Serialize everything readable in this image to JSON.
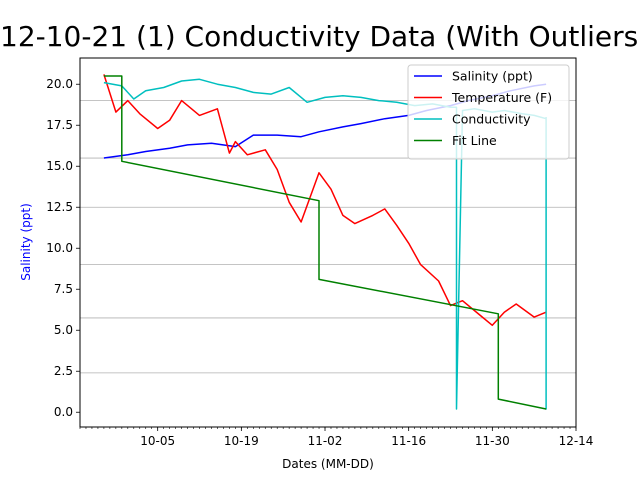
{
  "chart_data": {
    "type": "line",
    "title": "12-10-21 (1) Conductivity Data (With Outliers)",
    "xlabel": "Dates (MM-DD)",
    "ylabel": "Salinity (ppt)",
    "ylabel_color": "#0000ff",
    "x_axis": {
      "type": "date",
      "year": 2021,
      "xlim": [
        "2021-09-22",
        "2021-12-14"
      ],
      "ticks": [
        "2021-10-05",
        "2021-10-19",
        "2021-11-02",
        "2021-11-16",
        "2021-11-30",
        "2021-12-14"
      ],
      "tick_labels": [
        "10-05",
        "10-19",
        "11-02",
        "11-16",
        "11-30",
        "12-14"
      ]
    },
    "ylim": [
      -0.9,
      21.6
    ],
    "y_ticks": [
      0.0,
      2.5,
      5.0,
      7.5,
      10.0,
      12.5,
      15.0,
      17.5,
      20.0
    ],
    "y_tick_labels": [
      "0.0",
      "2.5",
      "5.0",
      "7.5",
      "10.0",
      "12.5",
      "15.0",
      "17.5",
      "20.0"
    ],
    "grid_lines_y": [
      19.0,
      15.5,
      12.5,
      9.0,
      5.75,
      2.4
    ],
    "legend": {
      "position": "top-right"
    },
    "series": [
      {
        "name": "Salinity (ppt)",
        "color": "#0000ff",
        "x": [
          "2021-09-26",
          "2021-09-30",
          "2021-10-03",
          "2021-10-07",
          "2021-10-10",
          "2021-10-14",
          "2021-10-18",
          "2021-10-21",
          "2021-10-25",
          "2021-10-29",
          "2021-11-01",
          "2021-11-05",
          "2021-11-08",
          "2021-11-12",
          "2021-11-16",
          "2021-11-19",
          "2021-11-23",
          "2021-11-26",
          "2021-11-30",
          "2021-12-03",
          "2021-12-07",
          "2021-12-09"
        ],
        "y": [
          15.5,
          15.7,
          15.9,
          16.1,
          16.3,
          16.4,
          16.2,
          16.9,
          16.9,
          16.8,
          17.1,
          17.4,
          17.6,
          17.9,
          18.1,
          18.4,
          18.7,
          19.0,
          19.3,
          19.6,
          19.9,
          20.0
        ]
      },
      {
        "name": "Temperature (F)",
        "color": "#ff0000",
        "x": [
          "2021-09-26",
          "2021-09-28",
          "2021-09-30",
          "2021-10-02",
          "2021-10-05",
          "2021-10-07",
          "2021-10-09",
          "2021-10-12",
          "2021-10-15",
          "2021-10-17",
          "2021-10-18",
          "2021-10-20",
          "2021-10-23",
          "2021-10-25",
          "2021-10-27",
          "2021-10-29",
          "2021-11-01",
          "2021-11-03",
          "2021-11-05",
          "2021-11-07",
          "2021-11-10",
          "2021-11-12",
          "2021-11-14",
          "2021-11-16",
          "2021-11-18",
          "2021-11-21",
          "2021-11-23",
          "2021-11-25",
          "2021-11-28",
          "2021-11-30",
          "2021-12-02",
          "2021-12-04",
          "2021-12-07",
          "2021-12-09"
        ],
        "y": [
          20.6,
          18.3,
          19.0,
          18.2,
          17.3,
          17.8,
          19.0,
          18.1,
          18.5,
          15.8,
          16.5,
          15.7,
          16.0,
          14.8,
          12.8,
          11.6,
          14.6,
          13.6,
          12.0,
          11.5,
          12.0,
          12.4,
          11.4,
          10.3,
          9.0,
          8.0,
          6.5,
          6.8,
          5.9,
          5.3,
          6.1,
          6.6,
          5.8,
          6.1
        ]
      },
      {
        "name": "Conductivity",
        "color": "#00bfbf",
        "x": [
          "2021-09-26",
          "2021-09-29",
          "2021-10-01",
          "2021-10-03",
          "2021-10-06",
          "2021-10-09",
          "2021-10-12",
          "2021-10-15",
          "2021-10-18",
          "2021-10-21",
          "2021-10-24",
          "2021-10-27",
          "2021-10-30",
          "2021-11-02",
          "2021-11-05",
          "2021-11-08",
          "2021-11-11",
          "2021-11-14",
          "2021-11-17",
          "2021-11-20",
          "2021-11-23",
          "2021-11-24",
          "2021-11-24",
          "2021-11-25",
          "2021-11-27",
          "2021-11-30",
          "2021-12-02",
          "2021-12-05",
          "2021-12-07",
          "2021-12-09",
          "2021-12-09",
          "2021-12-09"
        ],
        "y": [
          20.1,
          19.9,
          19.1,
          19.6,
          19.8,
          20.2,
          20.3,
          20.0,
          19.8,
          19.5,
          19.4,
          19.8,
          18.9,
          19.2,
          19.3,
          19.2,
          19.0,
          18.9,
          18.7,
          18.8,
          18.6,
          18.6,
          0.2,
          18.4,
          18.5,
          18.3,
          18.4,
          18.2,
          18.1,
          17.9,
          0.2,
          18.0
        ]
      },
      {
        "name": "Fit Line",
        "color": "#008000",
        "x": [
          "2021-09-26",
          "2021-09-29",
          "2021-09-29",
          "2021-11-01",
          "2021-11-01",
          "2021-12-01",
          "2021-12-01",
          "2021-12-09"
        ],
        "y": [
          20.5,
          20.5,
          15.3,
          12.9,
          8.1,
          6.0,
          0.8,
          0.2
        ]
      }
    ]
  }
}
